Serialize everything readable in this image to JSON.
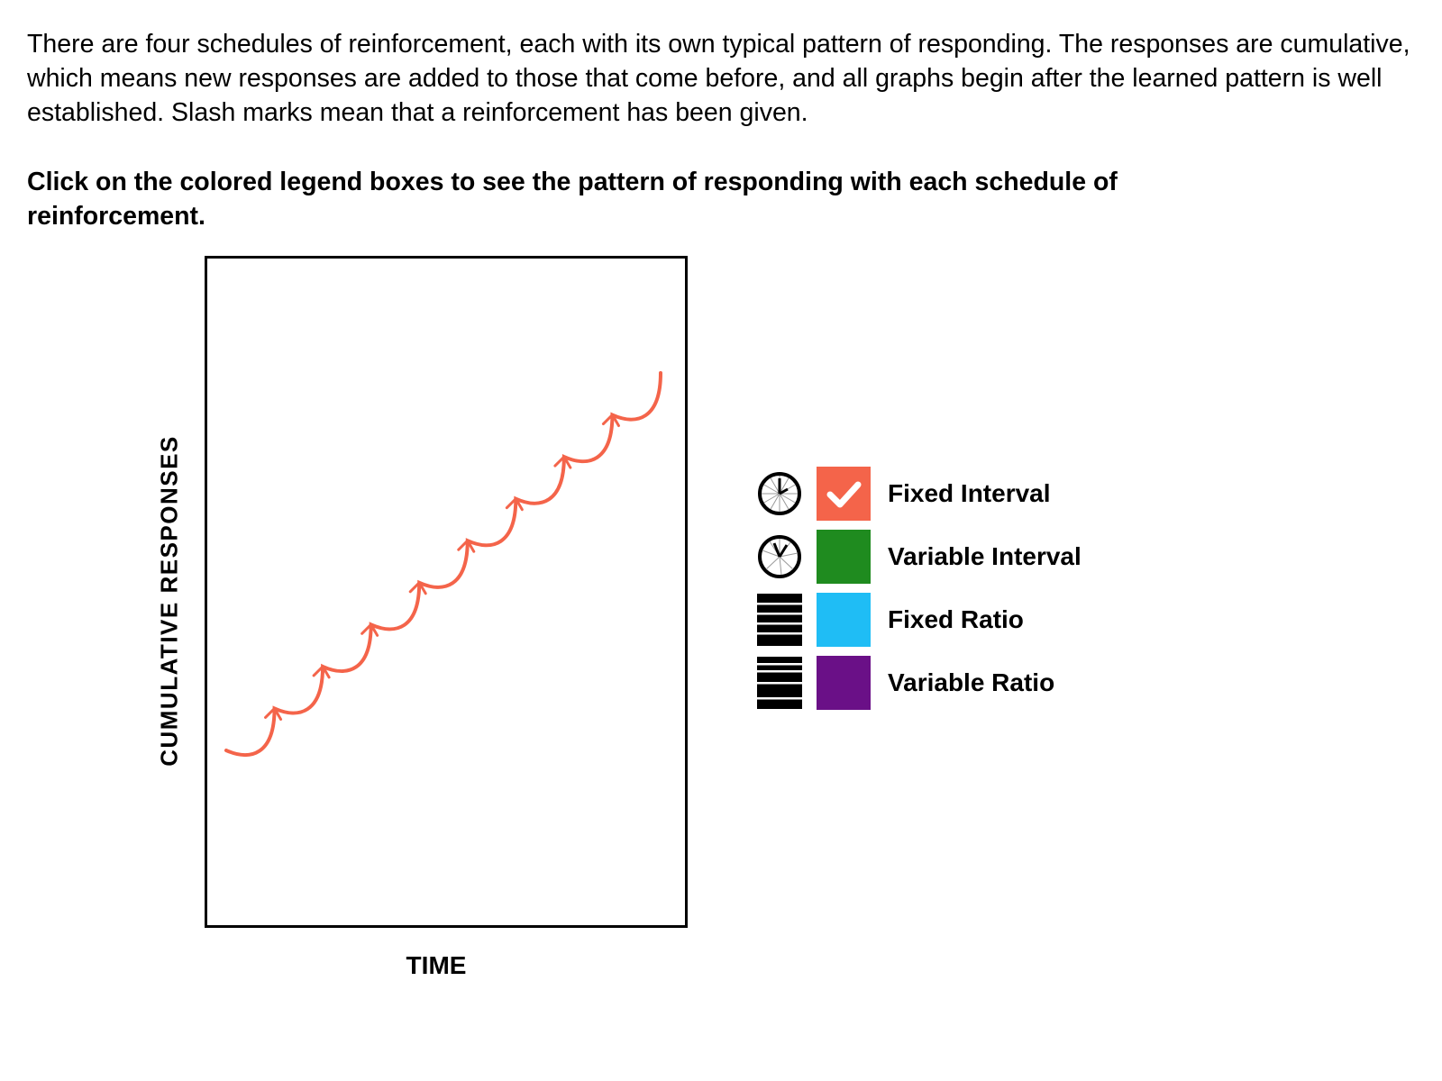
{
  "intro_text": "There are four schedules of reinforcement, each with its own typical pattern of responding. The responses are cumulative, which means new responses are added to those that come before, and all graphs begin after the learned pattern is well established. Slash marks mean that a reinforcement has been given.",
  "instruction_text": "Click on the colored legend boxes to see the pattern of responding with each schedule of reinforcement.",
  "chart_data": {
    "type": "line",
    "ylabel": "CUMULATIVE RESPONSES",
    "xlabel": "TIME",
    "selected_series": "Fixed Interval",
    "series_color": "#f4644a",
    "pattern": "scalloped",
    "reinforcement_count": 9
  },
  "legend": [
    {
      "label": "Fixed Interval",
      "color": "#f4644a",
      "icon": "clock-icon",
      "selected": true
    },
    {
      "label": "Variable Interval",
      "color": "#1f8b1f",
      "icon": "clock-icon",
      "selected": false
    },
    {
      "label": "Fixed Ratio",
      "color": "#1fbdf5",
      "icon": "stacked-bars-icon",
      "selected": false
    },
    {
      "label": "Variable Ratio",
      "color": "#6a1087",
      "icon": "stacked-bars-icon",
      "selected": false
    }
  ]
}
